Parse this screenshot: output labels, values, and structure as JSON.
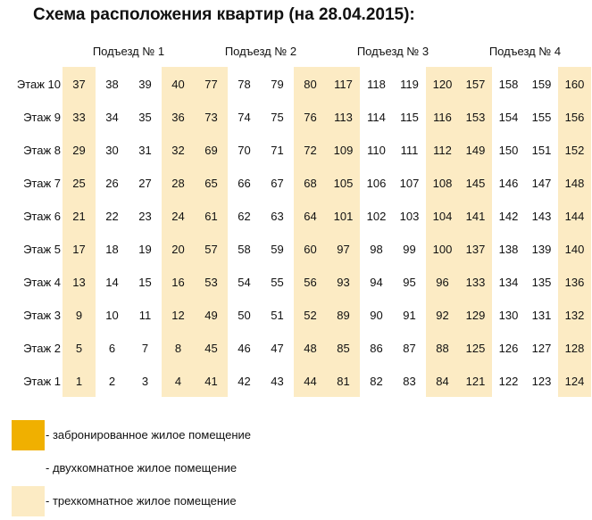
{
  "title": "Схема расположения квартир (на 28.04.2015):",
  "colors": {
    "reserved": "#f0b000",
    "three_room": "#fcebc4",
    "two_room": "#ffffff"
  },
  "entrances": [
    "Подъезд № 1",
    "Подъезд № 2",
    "Подъезд № 3",
    "Подъезд № 4"
  ],
  "floors": [
    {
      "label": "Этаж 10",
      "apartments": [
        37,
        38,
        39,
        40,
        77,
        78,
        79,
        80,
        117,
        118,
        119,
        120,
        157,
        158,
        159,
        160
      ]
    },
    {
      "label": "Этаж 9",
      "apartments": [
        33,
        34,
        35,
        36,
        73,
        74,
        75,
        76,
        113,
        114,
        115,
        116,
        153,
        154,
        155,
        156
      ]
    },
    {
      "label": "Этаж 8",
      "apartments": [
        29,
        30,
        31,
        32,
        69,
        70,
        71,
        72,
        109,
        110,
        111,
        112,
        149,
        150,
        151,
        152
      ]
    },
    {
      "label": "Этаж 7",
      "apartments": [
        25,
        26,
        27,
        28,
        65,
        66,
        67,
        68,
        105,
        106,
        107,
        108,
        145,
        146,
        147,
        148
      ]
    },
    {
      "label": "Этаж 6",
      "apartments": [
        21,
        22,
        23,
        24,
        61,
        62,
        63,
        64,
        101,
        102,
        103,
        104,
        141,
        142,
        143,
        144
      ]
    },
    {
      "label": "Этаж 5",
      "apartments": [
        17,
        18,
        19,
        20,
        57,
        58,
        59,
        60,
        97,
        98,
        99,
        100,
        137,
        138,
        139,
        140
      ]
    },
    {
      "label": "Этаж 4",
      "apartments": [
        13,
        14,
        15,
        16,
        53,
        54,
        55,
        56,
        93,
        94,
        95,
        96,
        133,
        134,
        135,
        136
      ]
    },
    {
      "label": "Этаж 3",
      "apartments": [
        9,
        10,
        11,
        12,
        49,
        50,
        51,
        52,
        89,
        90,
        91,
        92,
        129,
        130,
        131,
        132
      ]
    },
    {
      "label": "Этаж 2",
      "apartments": [
        5,
        6,
        7,
        8,
        45,
        46,
        47,
        48,
        85,
        86,
        87,
        88,
        125,
        126,
        127,
        128
      ]
    },
    {
      "label": "Этаж 1",
      "apartments": [
        1,
        2,
        3,
        4,
        41,
        42,
        43,
        44,
        81,
        82,
        83,
        84,
        121,
        122,
        123,
        124
      ]
    }
  ],
  "three_room_column_positions": [
    1,
    4
  ],
  "legend": [
    {
      "text": "- забронированное жилое помещение",
      "color": "#f0b000"
    },
    {
      "text": "- двухкомнатное жилое помещение",
      "color": "#ffffff"
    },
    {
      "text": "- трехкомнатное жилое помещение",
      "color": "#fcebc4"
    }
  ]
}
